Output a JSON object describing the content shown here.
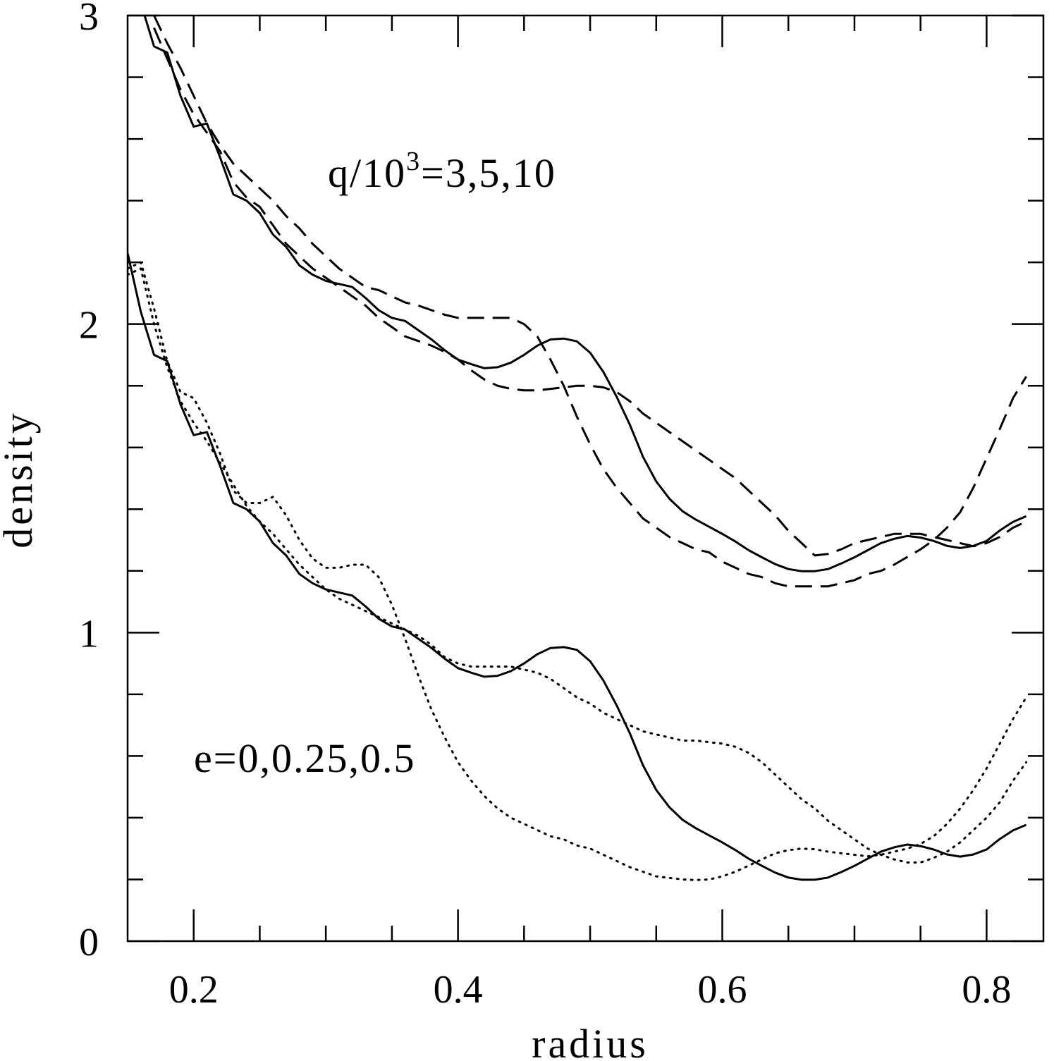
{
  "chart_data": {
    "type": "line",
    "xlabel": "radius",
    "ylabel": "density",
    "annotations": [
      {
        "parts": [
          "q/10",
          "3",
          "=3,5,10"
        ]
      },
      {
        "parts": [
          "e=0,0.25,0.5"
        ]
      }
    ],
    "xlim": [
      0.15,
      0.843
    ],
    "ylim": [
      0,
      3
    ],
    "xticks": [
      0.2,
      0.4,
      0.6,
      0.8
    ],
    "yticks": [
      0,
      1,
      2,
      3
    ],
    "minor_xticks": [
      0.25,
      0.3,
      0.35,
      0.45,
      0.5,
      0.55,
      0.65,
      0.7,
      0.75
    ],
    "minor_yticks": [
      0.2,
      0.4,
      0.6,
      0.8,
      1.2,
      1.4,
      1.6,
      1.8,
      2.2,
      2.4,
      2.6,
      2.8
    ],
    "x": [
      0.15,
      0.16,
      0.17,
      0.18,
      0.19,
      0.2,
      0.21,
      0.22,
      0.23,
      0.24,
      0.25,
      0.26,
      0.27,
      0.28,
      0.29,
      0.3,
      0.31,
      0.32,
      0.33,
      0.34,
      0.35,
      0.36,
      0.37,
      0.38,
      0.39,
      0.4,
      0.41,
      0.42,
      0.43,
      0.44,
      0.45,
      0.46,
      0.47,
      0.48,
      0.49,
      0.5,
      0.51,
      0.52,
      0.53,
      0.54,
      0.55,
      0.56,
      0.57,
      0.58,
      0.59,
      0.6,
      0.61,
      0.62,
      0.63,
      0.64,
      0.65,
      0.66,
      0.67,
      0.68,
      0.69,
      0.7,
      0.71,
      0.72,
      0.73,
      0.74,
      0.75,
      0.76,
      0.77,
      0.78,
      0.79,
      0.8,
      0.81,
      0.82,
      0.83
    ],
    "series": [
      {
        "color": "#000000",
        "dash": "solid",
        "values": [
          null,
          3.04,
          2.9,
          2.88,
          2.74,
          2.64,
          2.65,
          2.54,
          2.42,
          2.4,
          2.36,
          2.29,
          2.25,
          2.19,
          2.16,
          2.14,
          2.13,
          2.12,
          2.085,
          2.045,
          2.02,
          2.01,
          1.98,
          1.95,
          1.915,
          1.885,
          1.87,
          1.857,
          1.86,
          1.875,
          1.9,
          1.93,
          1.95,
          1.953,
          1.944,
          1.907,
          1.845,
          1.765,
          1.674,
          1.57,
          1.49,
          1.434,
          1.393,
          1.366,
          1.343,
          1.32,
          1.295,
          1.267,
          1.244,
          1.222,
          1.206,
          1.199,
          1.199,
          1.206,
          1.224,
          1.244,
          1.267,
          1.29,
          1.304,
          1.313,
          1.308,
          1.297,
          1.281,
          1.274,
          1.281,
          1.297,
          1.331,
          1.359,
          1.377
        ]
      },
      {
        "color": "#000000",
        "dash": "dashed",
        "values": [
          null,
          null,
          3.0,
          2.91,
          2.83,
          2.74,
          2.65,
          2.58,
          2.52,
          2.48,
          2.44,
          2.4,
          2.35,
          2.31,
          2.26,
          2.22,
          2.18,
          2.15,
          2.12,
          2.11,
          2.09,
          2.07,
          2.06,
          2.045,
          2.03,
          2.02,
          2.02,
          2.02,
          2.02,
          2.02,
          2.0,
          1.96,
          1.885,
          1.8,
          1.7,
          1.61,
          1.53,
          1.47,
          1.42,
          1.37,
          1.34,
          1.31,
          1.29,
          1.27,
          1.26,
          1.23,
          1.21,
          1.19,
          1.18,
          1.16,
          1.15,
          1.15,
          1.15,
          1.15,
          1.16,
          1.17,
          1.19,
          1.2,
          1.22,
          1.245,
          1.27,
          1.3,
          1.34,
          1.39,
          1.47,
          1.565,
          1.66,
          1.76,
          1.83
        ]
      },
      {
        "color": "#000000",
        "dash": "dashed",
        "values": [
          null,
          null,
          2.96,
          2.86,
          2.76,
          2.68,
          2.62,
          2.56,
          2.46,
          2.41,
          2.38,
          2.32,
          2.26,
          2.22,
          2.18,
          2.15,
          2.12,
          2.09,
          2.06,
          2.02,
          1.99,
          1.96,
          1.945,
          1.93,
          1.91,
          1.885,
          1.85,
          1.82,
          1.8,
          1.79,
          1.785,
          1.785,
          1.79,
          1.795,
          1.8,
          1.8,
          1.795,
          1.78,
          1.75,
          1.71,
          1.68,
          1.65,
          1.62,
          1.59,
          1.56,
          1.53,
          1.5,
          1.46,
          1.42,
          1.38,
          1.33,
          1.29,
          1.25,
          1.255,
          1.27,
          1.29,
          1.3,
          1.31,
          1.32,
          1.32,
          1.32,
          1.31,
          1.3,
          1.29,
          1.28,
          1.29,
          1.31,
          1.34,
          1.36
        ]
      },
      {
        "color": "#000000",
        "dash": "solid",
        "values": [
          2.23,
          2.04,
          1.9,
          1.88,
          1.74,
          1.64,
          1.65,
          1.54,
          1.42,
          1.4,
          1.36,
          1.29,
          1.25,
          1.19,
          1.16,
          1.14,
          1.13,
          1.12,
          1.085,
          1.045,
          1.02,
          1.01,
          0.98,
          0.95,
          0.915,
          0.885,
          0.87,
          0.857,
          0.86,
          0.875,
          0.9,
          0.93,
          0.95,
          0.953,
          0.944,
          0.907,
          0.845,
          0.765,
          0.674,
          0.57,
          0.49,
          0.434,
          0.393,
          0.366,
          0.343,
          0.32,
          0.295,
          0.267,
          0.244,
          0.222,
          0.206,
          0.199,
          0.199,
          0.206,
          0.224,
          0.244,
          0.267,
          0.29,
          0.304,
          0.313,
          0.308,
          0.297,
          0.281,
          0.274,
          0.281,
          0.297,
          0.331,
          0.359,
          0.377
        ]
      },
      {
        "color": "#000000",
        "dash": "dotted",
        "values": [
          2.18,
          2.2,
          2.05,
          1.88,
          1.78,
          1.76,
          1.68,
          1.58,
          1.46,
          1.42,
          1.42,
          1.44,
          1.38,
          1.3,
          1.24,
          1.21,
          1.21,
          1.22,
          1.22,
          1.18,
          1.09,
          0.98,
          0.86,
          0.75,
          0.66,
          0.58,
          0.52,
          0.47,
          0.43,
          0.4,
          0.38,
          0.36,
          0.34,
          0.33,
          0.31,
          0.3,
          0.28,
          0.26,
          0.24,
          0.225,
          0.21,
          0.205,
          0.2,
          0.198,
          0.2,
          0.21,
          0.225,
          0.245,
          0.265,
          0.285,
          0.295,
          0.3,
          0.298,
          0.29,
          0.285,
          0.28,
          0.275,
          0.28,
          0.29,
          0.3,
          0.315,
          0.34,
          0.38,
          0.43,
          0.49,
          0.56,
          0.64,
          0.72,
          0.79
        ]
      },
      {
        "color": "#000000",
        "dash": "dotted",
        "values": [
          2.16,
          2.18,
          2.0,
          1.86,
          1.75,
          1.68,
          1.62,
          1.55,
          1.48,
          1.41,
          1.36,
          1.32,
          1.27,
          1.22,
          1.18,
          1.14,
          1.11,
          1.09,
          1.07,
          1.05,
          1.03,
          1.01,
          0.99,
          0.96,
          0.92,
          0.9,
          0.89,
          0.89,
          0.89,
          0.89,
          0.88,
          0.87,
          0.85,
          0.82,
          0.79,
          0.77,
          0.74,
          0.72,
          0.7,
          0.68,
          0.67,
          0.66,
          0.65,
          0.65,
          0.645,
          0.64,
          0.63,
          0.61,
          0.58,
          0.54,
          0.5,
          0.46,
          0.43,
          0.39,
          0.36,
          0.33,
          0.3,
          0.28,
          0.265,
          0.255,
          0.255,
          0.27,
          0.29,
          0.32,
          0.36,
          0.4,
          0.45,
          0.52,
          0.58
        ]
      }
    ]
  }
}
